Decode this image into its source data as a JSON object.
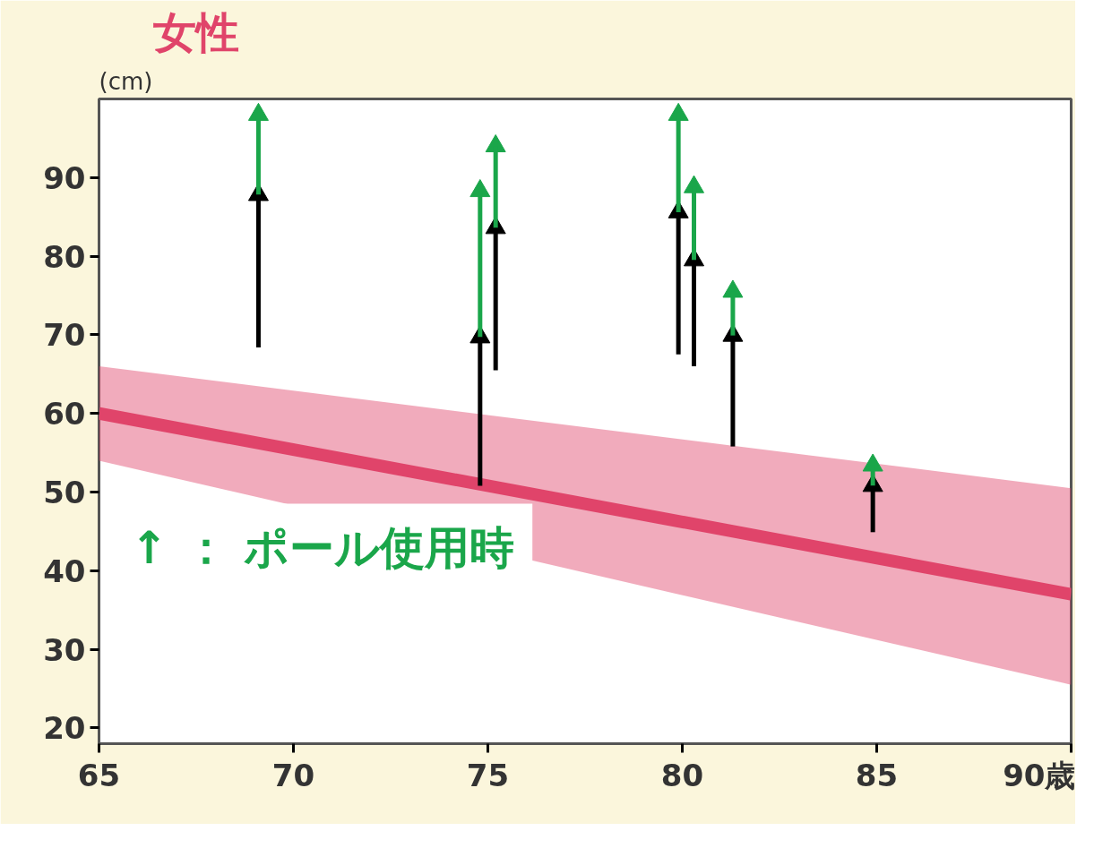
{
  "chart_data": {
    "type": "line",
    "title": "女性",
    "ylabel": "(cm)",
    "xlim": [
      65,
      90
    ],
    "ylim": [
      18,
      100
    ],
    "xticks": [
      65,
      70,
      75,
      80,
      85,
      {
        "value": 90,
        "label": "90歳"
      }
    ],
    "yticks": [
      20,
      30,
      40,
      50,
      60,
      70,
      80,
      90
    ],
    "grid": false,
    "marker": "triangle",
    "annotations": [
      "↑ ： ポール使用時"
    ],
    "series": [
      {
        "color": "#e0446a",
        "x": [
          65,
          90
        ],
        "values": [
          60,
          37
        ],
        "lower": [
          54,
          25.5
        ],
        "upper": [
          66,
          50.5
        ],
        "marker": "none"
      },
      {
        "color": "#1aa64a",
        "x": [
          69.1,
          69.1
        ],
        "values": [
          87.8,
          98
        ]
      },
      {
        "color": "#1aa64a",
        "x": [
          74.8,
          74.8
        ],
        "values": [
          69.7,
          88.3
        ]
      },
      {
        "color": "#1aa64a",
        "x": [
          75.2,
          75.2
        ],
        "values": [
          83.6,
          94
        ]
      },
      {
        "color": "#1aa64a",
        "x": [
          79.9,
          79.9
        ],
        "values": [
          85.6,
          98
        ]
      },
      {
        "color": "#1aa64a",
        "x": [
          80.3,
          80.3
        ],
        "values": [
          79.5,
          88.8
        ]
      },
      {
        "color": "#1aa64a",
        "x": [
          81.3,
          81.3
        ],
        "values": [
          69.9,
          75.5
        ]
      },
      {
        "color": "#1aa64a",
        "x": [
          84.9,
          84.9
        ],
        "values": [
          50.8,
          53.4
        ]
      },
      {
        "color": "#000000",
        "x": [
          69.1,
          69.1
        ],
        "values": [
          68.4,
          87.8
        ]
      },
      {
        "color": "#000000",
        "x": [
          74.8,
          74.8
        ],
        "values": [
          50.8,
          69.7
        ]
      },
      {
        "color": "#000000",
        "x": [
          75.2,
          75.2
        ],
        "values": [
          65.5,
          83.6
        ]
      },
      {
        "color": "#000000",
        "x": [
          79.9,
          79.9
        ],
        "values": [
          67.5,
          85.6
        ]
      },
      {
        "color": "#000000",
        "x": [
          80.3,
          80.3
        ],
        "values": [
          66,
          79.5
        ]
      },
      {
        "color": "#000000",
        "x": [
          81.3,
          81.3
        ],
        "values": [
          55.8,
          69.9
        ]
      },
      {
        "color": "#000000",
        "x": [
          84.9,
          84.9
        ],
        "values": [
          44.9,
          50.8
        ]
      }
    ]
  }
}
